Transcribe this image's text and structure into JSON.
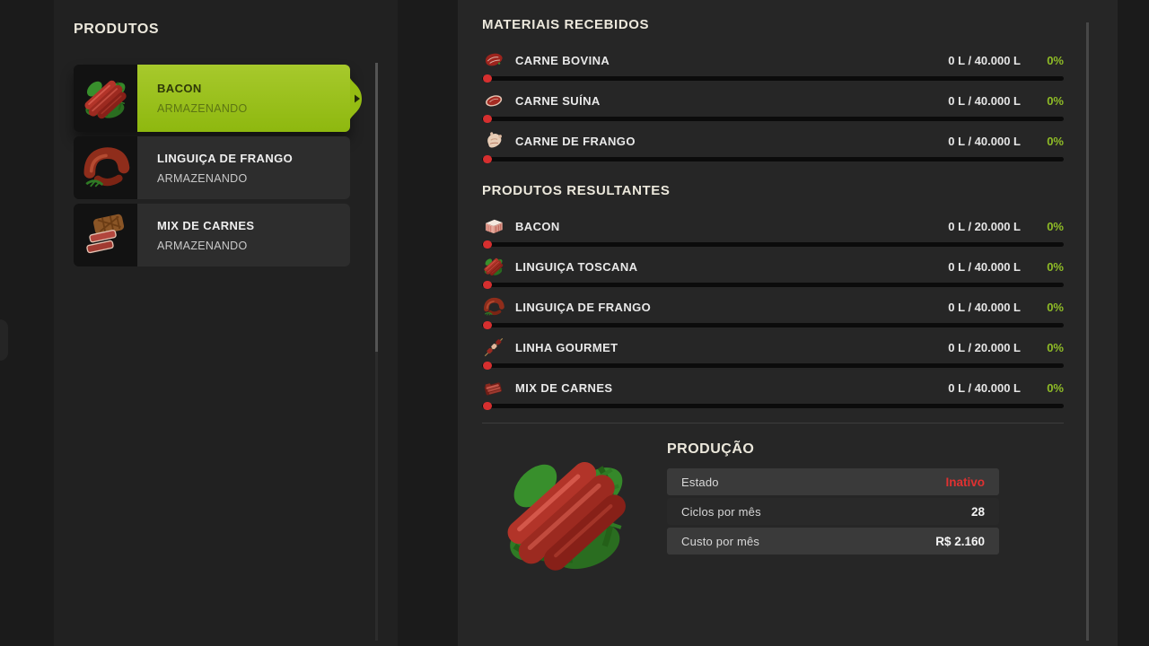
{
  "colors": {
    "accent": "#a7c92c",
    "accent-dark": "#8eb80f",
    "percent-green": "#8fbc26",
    "danger-red": "#e03131",
    "bar-red": "#d62f2f"
  },
  "sidebar": {
    "title": "PRODUTOS",
    "items": [
      {
        "title": "BACON",
        "status": "ARMAZENANDO",
        "selected": true,
        "icon": "sausage-bunch-icon"
      },
      {
        "title": "LINGUIÇA DE FRANGO",
        "status": "ARMAZENANDO",
        "selected": false,
        "icon": "sausage-curl-icon"
      },
      {
        "title": "MIX DE CARNES",
        "status": "ARMAZENANDO",
        "selected": false,
        "icon": "meat-slices-icon"
      }
    ]
  },
  "sections": {
    "materials": {
      "title": "MATERIAIS RECEBIDOS",
      "rows": [
        {
          "name": "CARNE BOVINA",
          "amount": "0 L / 40.000 L",
          "percent": "0%",
          "icon": "beef-icon"
        },
        {
          "name": "CARNE SUÍNA",
          "amount": "0 L / 40.000 L",
          "percent": "0%",
          "icon": "pork-icon"
        },
        {
          "name": "CARNE DE FRANGO",
          "amount": "0 L / 40.000 L",
          "percent": "0%",
          "icon": "chicken-icon"
        }
      ]
    },
    "products": {
      "title": "PRODUTOS RESULTANTES",
      "rows": [
        {
          "name": "BACON",
          "amount": "0 L / 20.000 L",
          "percent": "0%",
          "icon": "bacon-icon"
        },
        {
          "name": "LINGUIÇA TOSCANA",
          "amount": "0 L / 40.000 L",
          "percent": "0%",
          "icon": "sausage-bunch-icon"
        },
        {
          "name": "LINGUIÇA DE FRANGO",
          "amount": "0 L / 40.000 L",
          "percent": "0%",
          "icon": "sausage-curl-icon"
        },
        {
          "name": "LINHA GOURMET",
          "amount": "0 L / 20.000 L",
          "percent": "0%",
          "icon": "skewer-icon"
        },
        {
          "name": "MIX DE CARNES",
          "amount": "0 L / 40.000 L",
          "percent": "0%",
          "icon": "meat-mix-icon"
        }
      ]
    }
  },
  "production": {
    "title": "PRODUÇÃO",
    "image_icon": "sausage-bunch-icon",
    "rows": [
      {
        "label": "Estado",
        "value": "Inativo",
        "shaded": true,
        "style": "danger"
      },
      {
        "label": "Ciclos por mês",
        "value": "28",
        "shaded": false,
        "style": "normal"
      },
      {
        "label": "Custo por mês",
        "value": "R$ 2.160",
        "shaded": true,
        "style": "normal"
      }
    ]
  }
}
